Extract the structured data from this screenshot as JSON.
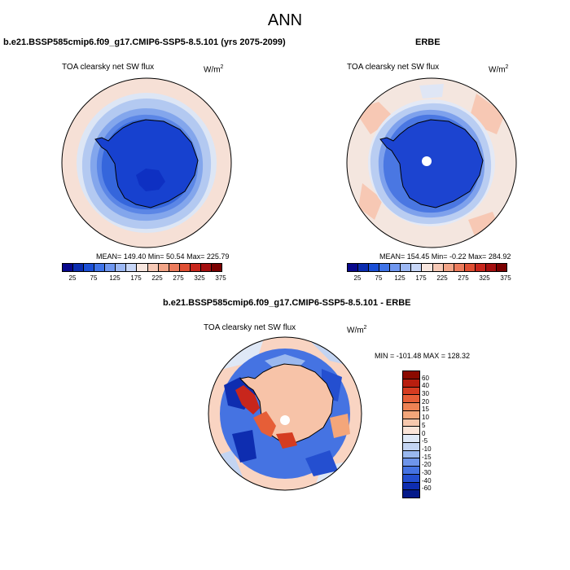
{
  "figure": {
    "title": "ANN"
  },
  "panel_model": {
    "case": "b.e21.BSSP585cmip6.f09_g17.CMIP6-SSP5-8.5.101 (yrs 2075-2099)",
    "variable": "TOA clearsky net SW flux",
    "unit_base": "W/m",
    "unit_exp": "2",
    "stats": "MEAN= 149.40  Min=  50.54  Max= 225.79"
  },
  "panel_obs": {
    "case": "ERBE",
    "variable": "TOA clearsky net SW flux",
    "unit_base": "W/m",
    "unit_exp": "2",
    "stats": "MEAN= 154.45  Min=  -0.22  Max= 284.92"
  },
  "panel_diff": {
    "case": "b.e21.BSSP585cmip6.f09_g17.CMIP6-SSP5-8.5.101 - ERBE",
    "variable": "TOA clearsky net SW flux",
    "unit_base": "W/m",
    "unit_exp": "2",
    "stats": "MIN = -101.48 MAX = 128.32"
  },
  "colorbar_abs": {
    "labels": [
      "25",
      "75",
      "125",
      "175",
      "225",
      "275",
      "325",
      "375"
    ],
    "colors": [
      "#08088c",
      "#0a2cb0",
      "#1b4fd6",
      "#3f73e8",
      "#6f97f0",
      "#9cb8f4",
      "#c7d6f7",
      "#f7e6df",
      "#f6c9b6",
      "#f2a487",
      "#ec7b5c",
      "#e04f33",
      "#c8261c",
      "#a50f0f",
      "#7a0000"
    ]
  },
  "colorbar_diff": {
    "labels": [
      "60",
      "40",
      "30",
      "20",
      "15",
      "10",
      "5",
      "0",
      "-5",
      "-10",
      "-15",
      "-20",
      "-30",
      "-40",
      "-60"
    ],
    "colors": [
      "#8b0a00",
      "#b81e0f",
      "#d53c21",
      "#e65e37",
      "#ee8254",
      "#f4a67a",
      "#f8c8ad",
      "#fbe4d8",
      "#dfe8f6",
      "#c3d4f2",
      "#9ab8ef",
      "#6e95ea",
      "#4573e2",
      "#244fd0",
      "#0e2db0",
      "#051a8a"
    ]
  }
}
